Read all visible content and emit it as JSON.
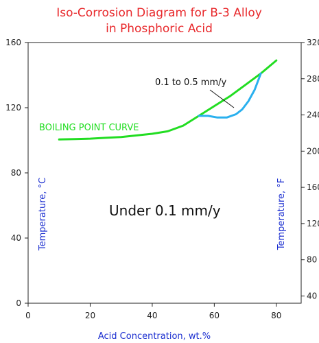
{
  "colors": {
    "title": "#e8282b",
    "axis_title": "#1c2fd0",
    "tick": "#222222",
    "boiling_curve": "#22dd22",
    "iso_curve": "#2ab0ee",
    "annotation": "#111111"
  },
  "chart_data": {
    "type": "line",
    "title_line1": "Iso-Corrosion Diagram for B-3 Alloy",
    "title_line2": "in Phosphoric Acid",
    "xlabel": "Acid Concentration, wt.%",
    "ylabel_left": "Temperature, °C",
    "ylabel_right": "Temperature, °F",
    "xlim": [
      0,
      88
    ],
    "ylim": [
      0,
      160
    ],
    "x_ticks": [
      0,
      20,
      40,
      60,
      80
    ],
    "y_ticks_left": [
      0,
      40,
      80,
      120,
      160
    ],
    "y_ticks_right": [
      40,
      80,
      120,
      160,
      200,
      240,
      280,
      320
    ],
    "grid": false,
    "series": [
      {
        "name": "BOILING POINT CURVE",
        "color": "#22dd22",
        "x": [
          10,
          15,
          20,
          25,
          30,
          35,
          40,
          45,
          50,
          55,
          60,
          65,
          70,
          75,
          80
        ],
        "y": [
          100.5,
          100.7,
          101,
          101.5,
          102,
          103,
          104,
          105.5,
          109,
          115,
          121,
          127,
          134,
          141,
          149
        ]
      },
      {
        "name": "0.1 to 0.5 mm/y",
        "color": "#2ab0ee",
        "x": [
          55,
          58,
          61,
          64,
          67,
          69,
          71,
          73,
          74,
          75
        ],
        "y": [
          115,
          115,
          114,
          114,
          116,
          119,
          124,
          131,
          136,
          141
        ]
      }
    ],
    "annotations": {
      "boiling_label": "BOILING POINT CURVE",
      "iso_label": "0.1 to 0.5 mm/y",
      "region_label": "Under 0.1 mm/y"
    }
  }
}
